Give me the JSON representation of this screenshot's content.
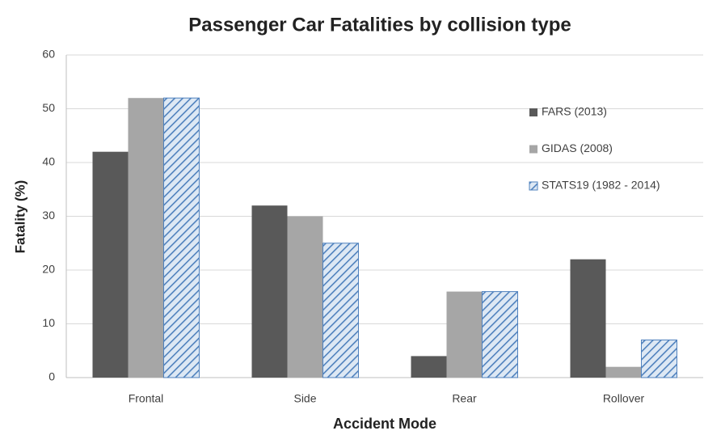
{
  "chart_data": {
    "type": "bar",
    "title": "Passenger Car Fatalities by collision type",
    "x_label": "Accident Mode",
    "y_label": "Fatality (%)",
    "categories": [
      "Frontal",
      "Side",
      "Rear",
      "Rollover"
    ],
    "series": [
      {
        "name": "FARS (2013)",
        "color": "#595959",
        "values": [
          42,
          32,
          4,
          22
        ]
      },
      {
        "name": "GIDAS (2008)",
        "color": "#a6a6a6",
        "values": [
          52,
          30,
          16,
          2
        ]
      },
      {
        "name": "STATS19 (1982 - 2014)",
        "color": "#4f81bd",
        "pattern": "hatch",
        "values": [
          52,
          25,
          16,
          7
        ]
      }
    ],
    "ylim": [
      0,
      60
    ],
    "yticks": [
      0,
      10,
      20,
      30,
      40,
      50,
      60
    ],
    "grid": true,
    "legend": "right"
  }
}
